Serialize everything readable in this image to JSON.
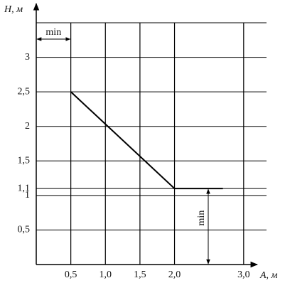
{
  "chart_data": {
    "type": "line",
    "x_label": "A, м",
    "y_label": "H, м",
    "x": [
      0.5,
      2.0,
      2.7
    ],
    "values": [
      2.5,
      1.1,
      1.1
    ],
    "color": "#000000",
    "xlim": [
      0,
      3.3
    ],
    "ylim": [
      0,
      3.5
    ],
    "xticks": [
      {
        "value": 0.5,
        "label": "0,5"
      },
      {
        "value": 1.0,
        "label": "1,0"
      },
      {
        "value": 1.5,
        "label": "1,5"
      },
      {
        "value": 2.0,
        "label": "2,0"
      },
      {
        "value": 3.0,
        "label": "3,0"
      }
    ],
    "yticks": [
      {
        "value": 0.5,
        "label": "0,5"
      },
      1,
      {
        "value": 1.1,
        "label": "1,1"
      },
      {
        "value": 1.5,
        "label": "1,5"
      },
      2,
      {
        "value": 2.5,
        "label": "2,5"
      },
      3
    ],
    "grid": true,
    "annotations": [
      "min",
      "min"
    ]
  }
}
